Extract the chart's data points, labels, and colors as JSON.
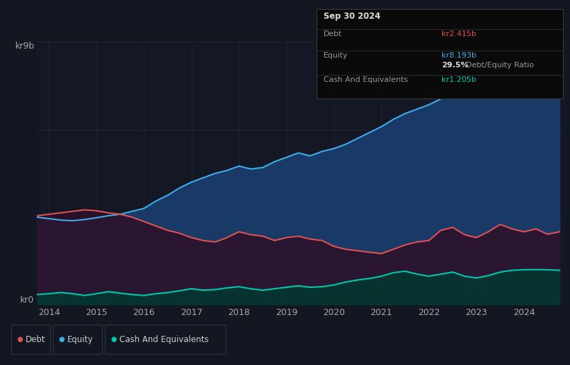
{
  "bg_color": "#131722",
  "plot_bg_color": "#141824",
  "grid_color": "#1e2535",
  "title_date": "Sep 30 2024",
  "tooltip": {
    "debt_label": "Debt",
    "debt_value": "kr2.415b",
    "debt_color": "#e05252",
    "equity_label": "Equity",
    "equity_value": "kr8.193b",
    "equity_color": "#3daee9",
    "ratio_value": "29.5%",
    "ratio_label": "Debt/Equity Ratio",
    "cash_label": "Cash And Equivalents",
    "cash_value": "kr1.205b",
    "cash_color": "#00c9ae"
  },
  "ylabel_top": "kr9b",
  "ylabel_bottom": "kr0",
  "y_max": 9.0,
  "y_min": 0.0,
  "legend": [
    {
      "label": "Debt",
      "color": "#e05252"
    },
    {
      "label": "Equity",
      "color": "#3daee9"
    },
    {
      "label": "Cash And Equivalents",
      "color": "#00c9ae"
    }
  ],
  "x_ticks": [
    2014,
    2015,
    2016,
    2017,
    2018,
    2019,
    2020,
    2021,
    2022,
    2023,
    2024
  ],
  "equity": {
    "x": [
      2013.75,
      2014.0,
      2014.25,
      2014.5,
      2014.75,
      2015.0,
      2015.25,
      2015.5,
      2015.75,
      2016.0,
      2016.25,
      2016.5,
      2016.75,
      2017.0,
      2017.25,
      2017.5,
      2017.75,
      2018.0,
      2018.25,
      2018.5,
      2018.75,
      2019.0,
      2019.25,
      2019.5,
      2019.75,
      2020.0,
      2020.25,
      2020.5,
      2020.75,
      2021.0,
      2021.25,
      2021.5,
      2021.75,
      2022.0,
      2022.25,
      2022.5,
      2022.75,
      2023.0,
      2023.25,
      2023.5,
      2023.75,
      2024.0,
      2024.25,
      2024.5,
      2024.75
    ],
    "y": [
      3.0,
      2.95,
      2.9,
      2.88,
      2.92,
      2.98,
      3.05,
      3.1,
      3.2,
      3.3,
      3.55,
      3.75,
      4.0,
      4.2,
      4.35,
      4.5,
      4.6,
      4.75,
      4.65,
      4.7,
      4.9,
      5.05,
      5.2,
      5.1,
      5.25,
      5.35,
      5.5,
      5.7,
      5.9,
      6.1,
      6.35,
      6.55,
      6.7,
      6.85,
      7.05,
      7.2,
      7.1,
      7.3,
      7.6,
      7.9,
      8.0,
      8.1,
      8.4,
      8.2,
      8.15
    ],
    "color": "#3daee9",
    "fill_alpha": 0.85
  },
  "debt": {
    "x": [
      2013.75,
      2014.0,
      2014.25,
      2014.5,
      2014.75,
      2015.0,
      2015.25,
      2015.5,
      2015.75,
      2016.0,
      2016.25,
      2016.5,
      2016.75,
      2017.0,
      2017.25,
      2017.5,
      2017.75,
      2018.0,
      2018.25,
      2018.5,
      2018.75,
      2019.0,
      2019.25,
      2019.5,
      2019.75,
      2020.0,
      2020.25,
      2020.5,
      2020.75,
      2021.0,
      2021.25,
      2021.5,
      2021.75,
      2022.0,
      2022.25,
      2022.5,
      2022.75,
      2023.0,
      2023.25,
      2023.5,
      2023.75,
      2024.0,
      2024.25,
      2024.5,
      2024.75
    ],
    "y": [
      3.05,
      3.1,
      3.15,
      3.2,
      3.25,
      3.22,
      3.15,
      3.1,
      3.0,
      2.85,
      2.7,
      2.55,
      2.45,
      2.3,
      2.2,
      2.15,
      2.3,
      2.5,
      2.4,
      2.35,
      2.2,
      2.3,
      2.35,
      2.25,
      2.2,
      2.0,
      1.9,
      1.85,
      1.8,
      1.75,
      1.9,
      2.05,
      2.15,
      2.2,
      2.55,
      2.65,
      2.4,
      2.3,
      2.5,
      2.75,
      2.6,
      2.5,
      2.6,
      2.415,
      2.5
    ],
    "color": "#e05252",
    "fill_alpha": 0.7
  },
  "cash": {
    "x": [
      2013.75,
      2014.0,
      2014.25,
      2014.5,
      2014.75,
      2015.0,
      2015.25,
      2015.5,
      2015.75,
      2016.0,
      2016.25,
      2016.5,
      2016.75,
      2017.0,
      2017.25,
      2017.5,
      2017.75,
      2018.0,
      2018.25,
      2018.5,
      2018.75,
      2019.0,
      2019.25,
      2019.5,
      2019.75,
      2020.0,
      2020.25,
      2020.5,
      2020.75,
      2021.0,
      2021.25,
      2021.5,
      2021.75,
      2022.0,
      2022.25,
      2022.5,
      2022.75,
      2023.0,
      2023.25,
      2023.5,
      2023.75,
      2024.0,
      2024.25,
      2024.5,
      2024.75
    ],
    "y": [
      0.35,
      0.38,
      0.42,
      0.38,
      0.32,
      0.38,
      0.45,
      0.4,
      0.35,
      0.32,
      0.38,
      0.42,
      0.48,
      0.55,
      0.5,
      0.52,
      0.58,
      0.62,
      0.55,
      0.5,
      0.55,
      0.6,
      0.65,
      0.6,
      0.62,
      0.68,
      0.78,
      0.85,
      0.9,
      0.98,
      1.1,
      1.15,
      1.05,
      0.98,
      1.05,
      1.12,
      0.98,
      0.92,
      1.0,
      1.12,
      1.18,
      1.2,
      1.205,
      1.2,
      1.18
    ],
    "color": "#00c9ae",
    "fill_alpha": 0.7
  }
}
